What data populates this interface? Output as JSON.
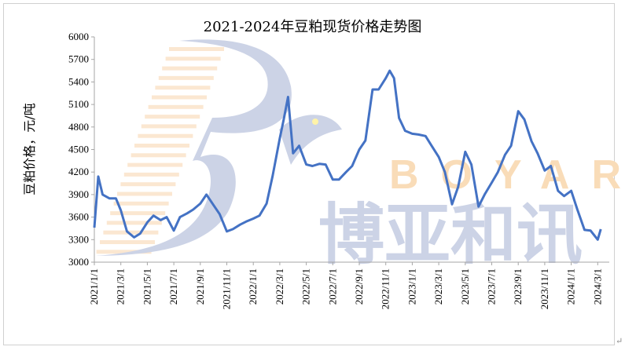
{
  "chart_data": {
    "type": "line",
    "title": "2021-2024年豆粕现货价格走势图",
    "xlabel": "",
    "ylabel": "豆粕价格，元/吨",
    "ylim": [
      3000,
      6000
    ],
    "yticks": [
      3000,
      3300,
      3600,
      3900,
      4200,
      4500,
      4800,
      5100,
      5400,
      5700,
      6000
    ],
    "xticks": [
      "2021/1/1",
      "2021/3/1",
      "2021/5/1",
      "2021/7/1",
      "2021/9/1",
      "2021/11/1",
      "2022/1/1",
      "2022/3/1",
      "2022/5/1",
      "2022/7/1",
      "2022/9/1",
      "2022/11/1",
      "2023/1/1",
      "2023/3/1",
      "2023/5/1",
      "2023/7/1",
      "2023/9/1",
      "2023/11/1",
      "2024/1/1",
      "2024/3/1"
    ],
    "grid": false,
    "line_color": "#4472C4",
    "series": [
      {
        "x": [
          "2021/1/1",
          "2021/1/10",
          "2021/1/20",
          "2021/2/5",
          "2021/2/20",
          "2021/3/1",
          "2021/3/15",
          "2021/4/1",
          "2021/4/15",
          "2021/5/1",
          "2021/5/15",
          "2021/6/1",
          "2021/6/15",
          "2021/7/1",
          "2021/7/15",
          "2021/8/1",
          "2021/8/15",
          "2021/9/1",
          "2021/9/15",
          "2021/10/1",
          "2021/10/15",
          "2021/11/1",
          "2021/11/15",
          "2021/12/1",
          "2021/12/15",
          "2022/1/1",
          "2022/1/15",
          "2022/2/1",
          "2022/2/15",
          "2022/3/1",
          "2022/3/10",
          "2022/3/20",
          "2022/4/1",
          "2022/4/15",
          "2022/5/1",
          "2022/5/15",
          "2022/6/1",
          "2022/6/15",
          "2022/7/1",
          "2022/7/15",
          "2022/8/1",
          "2022/8/15",
          "2022/9/1",
          "2022/9/15",
          "2022/10/1",
          "2022/10/15",
          "2022/11/1",
          "2022/11/10",
          "2022/11/20",
          "2022/12/1",
          "2022/12/15",
          "2023/1/1",
          "2023/1/15",
          "2023/2/1",
          "2023/2/15",
          "2023/3/1",
          "2023/3/15",
          "2023/4/1",
          "2023/4/15",
          "2023/5/1",
          "2023/5/15",
          "2023/6/1",
          "2023/6/15",
          "2023/7/1",
          "2023/7/15",
          "2023/8/1",
          "2023/8/15",
          "2023/9/1",
          "2023/9/15",
          "2023/10/1",
          "2023/10/15",
          "2023/11/1",
          "2023/11/15",
          "2023/12/1",
          "2023/12/15",
          "2024/1/1",
          "2024/1/15",
          "2024/2/1",
          "2024/2/15",
          "2024/3/1",
          "2024/3/8"
        ],
        "values": [
          3460,
          4140,
          3900,
          3850,
          3850,
          3690,
          3410,
          3330,
          3380,
          3530,
          3620,
          3560,
          3600,
          3420,
          3600,
          3650,
          3700,
          3780,
          3900,
          3760,
          3640,
          3410,
          3440,
          3500,
          3540,
          3580,
          3620,
          3780,
          4150,
          4650,
          4900,
          5200,
          4450,
          4550,
          4300,
          4280,
          4310,
          4300,
          4100,
          4100,
          4200,
          4280,
          4500,
          4620,
          5300,
          5300,
          5450,
          5550,
          5450,
          4920,
          4750,
          4710,
          4700,
          4680,
          4550,
          4400,
          4200,
          3770,
          4000,
          4470,
          4300,
          3740,
          3900,
          4060,
          4200,
          4430,
          4550,
          5010,
          4900,
          4610,
          4450,
          4220,
          4280,
          3950,
          3880,
          3950,
          3700,
          3430,
          3420,
          3300,
          3440
        ]
      }
    ]
  },
  "watermark": {
    "brand_en": "BOYAR",
    "brand_cn": "博亚和讯"
  }
}
